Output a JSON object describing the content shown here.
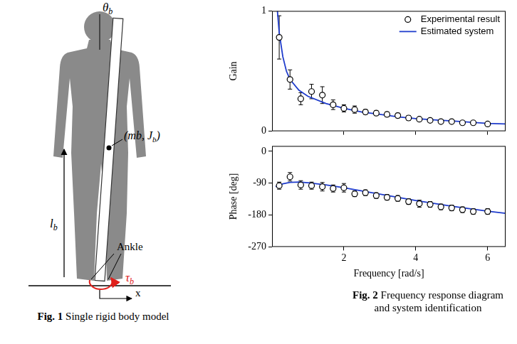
{
  "figure_1": {
    "labels": {
      "angle": [
        {
          "text": "θ"
        },
        {
          "text": "b",
          "sub": true
        }
      ],
      "body": [
        {
          "text": "(mb, J"
        },
        {
          "text": "b",
          "sub": true
        },
        {
          "text": ")"
        }
      ],
      "length": [
        {
          "text": "l"
        },
        {
          "text": "b",
          "sub": true
        }
      ],
      "joint": [
        {
          "text": "Ankle"
        }
      ],
      "torque": [
        {
          "text": "τ"
        },
        {
          "text": "b",
          "sub": true
        }
      ],
      "axis": [
        {
          "text": "x"
        }
      ]
    },
    "caption": {
      "number": "Fig. 1",
      "text": "Single rigid body model"
    }
  },
  "figure_2_caption": {
    "number": "Fig. 2",
    "text": "Frequency response diagram and system identification"
  },
  "chart_data": [
    {
      "type": "scatter",
      "y_label": "Gain",
      "xlim": [
        0,
        6.5
      ],
      "xticks": [
        2,
        4,
        6
      ],
      "ylim": [
        0,
        1
      ],
      "yticks": [
        0,
        1
      ],
      "grid": false,
      "legend": "upper right",
      "tick_labels": "y",
      "series": [
        {
          "name": "Experimental result",
          "type": "scatter",
          "marker": "circle",
          "color": "#000000",
          "x": [
            0.2,
            0.5,
            0.8,
            1.1,
            1.4,
            1.7,
            2.0,
            2.3,
            2.6,
            2.9,
            3.2,
            3.5,
            3.8,
            4.1,
            4.4,
            4.7,
            5.0,
            5.3,
            5.6,
            6.0
          ],
          "values": [
            0.78,
            0.43,
            0.27,
            0.33,
            0.3,
            0.22,
            0.19,
            0.18,
            0.16,
            0.15,
            0.14,
            0.13,
            0.11,
            0.1,
            0.09,
            0.08,
            0.08,
            0.07,
            0.07,
            0.06
          ],
          "errors": [
            0.18,
            0.08,
            0.05,
            0.06,
            0.07,
            0.04,
            0.03,
            0.03,
            0.02,
            0.02,
            0.02,
            0.02,
            0.02,
            0.01,
            0.01,
            0.01,
            0.01,
            0.01,
            0.01,
            0.01
          ]
        },
        {
          "name": "Estimated system",
          "type": "line",
          "line_style": "solid",
          "color": "#1f3ccc",
          "x": [
            0.15,
            0.2,
            0.3,
            0.4,
            0.5,
            0.75,
            1,
            1.5,
            2,
            2.5,
            3,
            3.5,
            4,
            4.5,
            5,
            5.5,
            6,
            6.5
          ],
          "values": [
            1.0,
            0.82,
            0.62,
            0.5,
            0.43,
            0.34,
            0.29,
            0.23,
            0.19,
            0.16,
            0.14,
            0.12,
            0.105,
            0.095,
            0.085,
            0.075,
            0.065,
            0.06
          ]
        }
      ]
    },
    {
      "type": "scatter",
      "x_label": "Frequency [rad/s]",
      "y_label": "Phase [deg]",
      "xlim": [
        0,
        6.5
      ],
      "xticks": [
        2,
        4,
        6
      ],
      "ylim": [
        -270,
        15
      ],
      "yticks": [
        -270,
        -180,
        -90,
        0
      ],
      "grid": false,
      "series": [
        {
          "type": "scatter",
          "marker": "circle",
          "color": "#000000",
          "x": [
            0.2,
            0.5,
            0.8,
            1.1,
            1.4,
            1.7,
            2.0,
            2.3,
            2.6,
            2.9,
            3.2,
            3.5,
            3.8,
            4.1,
            4.4,
            4.7,
            5.0,
            5.3,
            5.6,
            6.0
          ],
          "values": [
            -97,
            -72,
            -95,
            -97,
            -100,
            -105,
            -103,
            -120,
            -117,
            -125,
            -130,
            -133,
            -142,
            -148,
            -150,
            -157,
            -160,
            -165,
            -170,
            -170
          ],
          "errors": [
            10,
            12,
            12,
            10,
            12,
            10,
            12,
            8,
            8,
            8,
            8,
            8,
            8,
            10,
            8,
            8,
            8,
            8,
            8,
            8
          ]
        },
        {
          "type": "line",
          "line_style": "solid",
          "color": "#1f3ccc",
          "x": [
            0.1,
            0.3,
            0.5,
            0.75,
            1,
            1.5,
            2,
            2.5,
            3,
            3.5,
            4,
            4.5,
            5,
            5.5,
            6,
            6.5
          ],
          "values": [
            -100,
            -92,
            -88,
            -87,
            -89,
            -95,
            -103,
            -112,
            -121,
            -130,
            -139,
            -147,
            -155,
            -162,
            -169,
            -175
          ]
        }
      ]
    }
  ]
}
